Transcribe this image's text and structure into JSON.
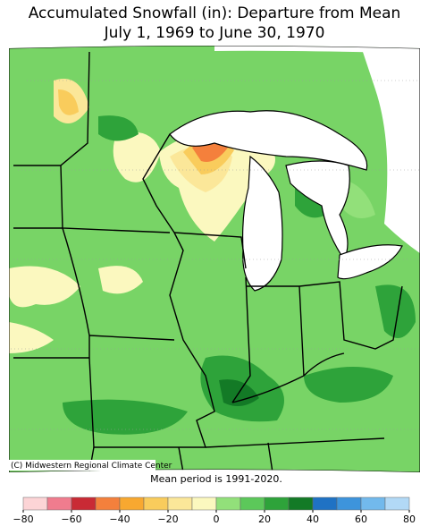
{
  "title": "Accumulated Snowfall (in): Departure from Mean",
  "subtitle": "July 1, 1969 to June 30, 1970",
  "credit": "(C) Midwestern Regional Climate Center",
  "note": "Mean period is 1991-2020.",
  "colorbar": {
    "range": [
      -80,
      80
    ],
    "ticks": [
      {
        "value": -80,
        "label": "−80"
      },
      {
        "value": -60,
        "label": "−60"
      },
      {
        "value": -40,
        "label": "−40"
      },
      {
        "value": -20,
        "label": "−20"
      },
      0,
      20,
      40,
      60,
      80
    ],
    "colors": [
      "#fcd4d6",
      "#f07c8e",
      "#c92a35",
      "#f4803c",
      "#f8a830",
      "#f9cc5c",
      "#fbe799",
      "#fbf8bf",
      "#92e07a",
      "#5cc85a",
      "#2ea33a",
      "#137a26",
      "#1f72c4",
      "#3d94dc",
      "#72b9ec",
      "#b2d9f6"
    ]
  }
}
